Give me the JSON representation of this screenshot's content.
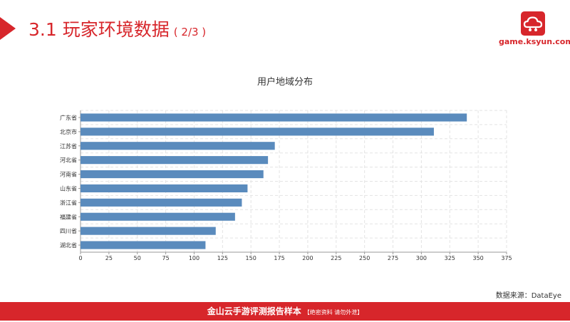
{
  "header": {
    "section_number": "3.1",
    "title": "玩家环境数据",
    "subtitle": "( 2/3 )",
    "brand_color": "#d7262b"
  },
  "logo": {
    "icon": "cloud-game-logo-icon",
    "text": "game.ksyun.com"
  },
  "chart_data": {
    "type": "bar",
    "orientation": "horizontal",
    "title": "用户地域分布",
    "categories": [
      "广东省",
      "北京市",
      "江苏省",
      "河北省",
      "河南省",
      "山东省",
      "浙江省",
      "福建省",
      "四川省",
      "湖北省"
    ],
    "values": [
      340,
      311,
      171,
      165,
      161,
      147,
      142,
      136,
      119,
      110
    ],
    "xlim": [
      0,
      375
    ],
    "xticks": [
      0,
      25,
      50,
      75,
      100,
      125,
      150,
      175,
      200,
      225,
      250,
      275,
      300,
      325,
      350,
      375
    ],
    "grid": true,
    "bar_color": "#5a8bbd"
  },
  "source_text": "数据来源：DataEye",
  "footer": {
    "text": "金山云手游评测报告样本",
    "note": "【绝密资料 请勿外泄】"
  }
}
